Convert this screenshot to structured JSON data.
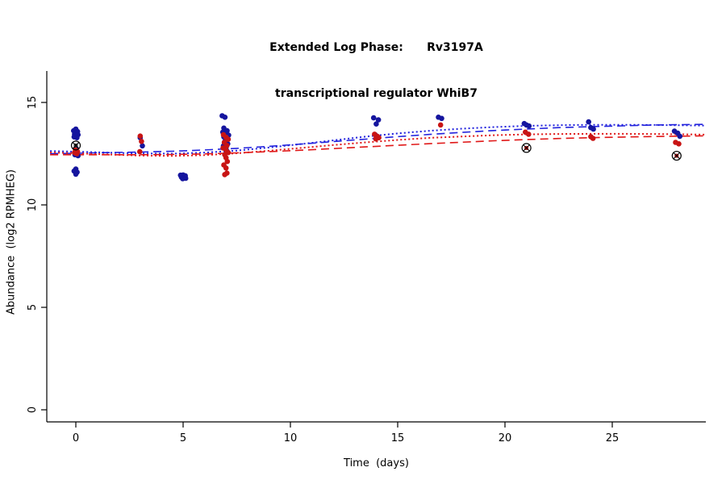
{
  "colors": {
    "blue_point": "#15159e",
    "red_point": "#c81414",
    "blue_line": "#2222dd",
    "red_line": "#e01818",
    "axis": "#000000",
    "flag": "#000000"
  },
  "chart_data": {
    "type": "scatter",
    "title_line1": "Extended Log Phase:      Rv3197A",
    "title_line2": "transcriptional regulator WhiB7",
    "xlabel": "Time  (days)",
    "ylabel": "Abundance  (log2 RPMHEG)",
    "xlim": [
      -1.4,
      29.4
    ],
    "ylim": [
      -0.6,
      17.6
    ],
    "x_ticks": [
      0,
      5,
      10,
      15,
      20,
      25
    ],
    "y_ticks": [
      0,
      5,
      10,
      15
    ],
    "grid": false,
    "legend": "none",
    "series": [
      {
        "name": "replicate-blue",
        "color": "blue",
        "points": [
          [
            0,
            13.7
          ],
          [
            -0.1,
            13.62
          ],
          [
            0.08,
            13.58
          ],
          [
            0.02,
            13.52
          ],
          [
            -0.06,
            13.45
          ],
          [
            0.1,
            13.42
          ],
          [
            0,
            13.38
          ],
          [
            -0.08,
            13.32
          ],
          [
            0.05,
            13.28
          ],
          [
            0.02,
            12.75
          ],
          [
            -0.04,
            12.45
          ],
          [
            0.1,
            12.4
          ],
          [
            0,
            11.75
          ],
          [
            -0.08,
            11.65
          ],
          [
            0.06,
            11.6
          ],
          [
            0,
            11.5
          ],
          [
            3.0,
            13.28
          ],
          [
            3.1,
            12.88
          ],
          [
            4.88,
            11.45
          ],
          [
            5.0,
            11.46
          ],
          [
            5.1,
            11.42
          ],
          [
            4.92,
            11.36
          ],
          [
            5.05,
            11.34
          ],
          [
            4.98,
            11.28
          ],
          [
            5.12,
            11.3
          ],
          [
            6.82,
            14.35
          ],
          [
            6.95,
            14.28
          ],
          [
            6.9,
            13.75
          ],
          [
            7.05,
            13.62
          ],
          [
            6.85,
            13.55
          ],
          [
            7.0,
            13.48
          ],
          [
            7.12,
            13.4
          ],
          [
            6.9,
            13.32
          ],
          [
            7.02,
            13.22
          ],
          [
            6.95,
            13.1
          ],
          [
            7.08,
            12.98
          ],
          [
            6.88,
            12.88
          ],
          [
            7.0,
            12.78
          ],
          [
            7.05,
            12.62
          ],
          [
            13.88,
            14.25
          ],
          [
            14.1,
            14.15
          ],
          [
            14.0,
            13.95
          ],
          [
            13.95,
            13.42
          ],
          [
            14.08,
            13.3
          ],
          [
            16.9,
            14.28
          ],
          [
            17.05,
            14.22
          ],
          [
            20.9,
            13.97
          ],
          [
            21.0,
            13.9
          ],
          [
            21.12,
            13.85
          ],
          [
            23.9,
            14.05
          ],
          [
            24.0,
            13.77
          ],
          [
            24.12,
            13.7
          ],
          [
            27.9,
            13.6
          ],
          [
            28.05,
            13.5
          ],
          [
            28.15,
            13.35
          ]
        ]
      },
      {
        "name": "replicate-red",
        "color": "red",
        "points": [
          [
            -0.02,
            12.68
          ],
          [
            0.08,
            12.6
          ],
          [
            -0.06,
            12.55
          ],
          [
            0.04,
            12.5
          ],
          [
            3.0,
            13.36
          ],
          [
            3.06,
            13.1
          ],
          [
            2.98,
            12.6
          ],
          [
            6.88,
            13.42
          ],
          [
            7.0,
            13.3
          ],
          [
            7.1,
            13.2
          ],
          [
            6.92,
            13.05
          ],
          [
            7.04,
            12.9
          ],
          [
            6.86,
            12.78
          ],
          [
            7.0,
            12.68
          ],
          [
            7.1,
            12.55
          ],
          [
            6.94,
            12.45
          ],
          [
            7.0,
            12.3
          ],
          [
            7.06,
            12.12
          ],
          [
            6.9,
            11.95
          ],
          [
            7.0,
            11.8
          ],
          [
            7.04,
            11.55
          ],
          [
            6.94,
            11.48
          ],
          [
            13.92,
            13.45
          ],
          [
            14.05,
            13.35
          ],
          [
            14.12,
            13.28
          ],
          [
            13.98,
            13.22
          ],
          [
            17.0,
            13.9
          ],
          [
            20.95,
            13.55
          ],
          [
            21.1,
            13.45
          ],
          [
            24.0,
            13.33
          ],
          [
            24.1,
            13.25
          ],
          [
            27.95,
            13.05
          ],
          [
            28.1,
            12.98
          ]
        ]
      }
    ],
    "flagged_points": {
      "marker": "circle-cross",
      "points": [
        [
          0,
          12.9
        ],
        [
          21,
          12.78
        ],
        [
          28,
          12.4
        ]
      ],
      "inner_colors": [
        "#333333",
        "#c81414",
        "#c81414"
      ]
    },
    "trend_x": [
      -1.2,
      0,
      1.5,
      3,
      4.5,
      6,
      7.5,
      9,
      10.5,
      12,
      13.5,
      15,
      16.5,
      18,
      19.5,
      21,
      22.5,
      24,
      25.5,
      27,
      28.5,
      29.3
    ],
    "trend_lines": [
      {
        "name": "blue-dashed",
        "color": "blue",
        "style": "dashed",
        "y": [
          12.5,
          12.52,
          12.55,
          12.58,
          12.62,
          12.68,
          12.76,
          12.86,
          12.97,
          13.09,
          13.21,
          13.33,
          13.44,
          13.54,
          13.63,
          13.7,
          13.77,
          13.82,
          13.86,
          13.9,
          13.92,
          13.93
        ]
      },
      {
        "name": "blue-dotted",
        "color": "blue",
        "style": "dotted",
        "y": [
          12.63,
          12.6,
          12.55,
          12.51,
          12.5,
          12.55,
          12.65,
          12.8,
          12.97,
          13.15,
          13.33,
          13.49,
          13.62,
          13.72,
          13.8,
          13.86,
          13.89,
          13.91,
          13.91,
          13.9,
          13.88,
          13.87
        ]
      },
      {
        "name": "red-dashed",
        "color": "red",
        "style": "dashed",
        "y": [
          12.45,
          12.45,
          12.45,
          12.45,
          12.46,
          12.49,
          12.54,
          12.6,
          12.67,
          12.75,
          12.83,
          12.91,
          12.99,
          13.06,
          13.13,
          13.19,
          13.24,
          13.28,
          13.31,
          13.34,
          13.36,
          13.37
        ]
      },
      {
        "name": "red-dotted",
        "color": "red",
        "style": "dotted",
        "y": [
          12.56,
          12.52,
          12.46,
          12.41,
          12.39,
          12.43,
          12.52,
          12.64,
          12.78,
          12.92,
          13.05,
          13.17,
          13.27,
          13.34,
          13.4,
          13.44,
          13.46,
          13.47,
          13.47,
          13.46,
          13.44,
          13.43
        ]
      }
    ]
  }
}
